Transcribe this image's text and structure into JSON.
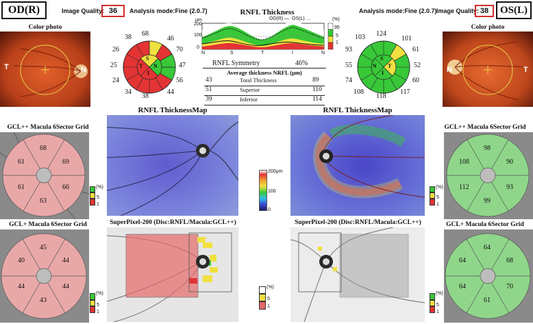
{
  "od": {
    "eye": "OD(R)",
    "quality_label": "Image Quality:",
    "quality_value": "36",
    "mode": "Analysis mode:Fine (2.0.7)",
    "color_photo_title": "Color photo",
    "photo_left": "T",
    "photo_right": "N",
    "clock": {
      "s1": "38",
      "s2": "68",
      "s3": "46",
      "s4": "26",
      "s5": "70",
      "s6": "25",
      "s7": "47",
      "s8": "24",
      "s9": "56",
      "s10": "34",
      "s11": "38",
      "s12": "44"
    },
    "quadrant": {
      "S": "S",
      "T": "T",
      "N": "N",
      "I": "I"
    },
    "gclpp_title": "GCL++ Macula 6Sector Grid",
    "gclpp": {
      "top": "68",
      "upper_left": "61",
      "upper_right": "69",
      "lower_left": "61",
      "lower_right": "66",
      "bottom": "63"
    },
    "gclp_title": "GCL+ Macula 6Sector Grid",
    "gclp": {
      "top": "45",
      "upper_left": "40",
      "upper_right": "44",
      "lower_left": "44",
      "lower_right": "44",
      "bottom": "43"
    }
  },
  "os": {
    "eye": "OS(L)",
    "quality_label": "Image Quality:",
    "quality_value": "38",
    "mode": "Analysis mode:Fine (2.0.7)",
    "color_photo_title": "Color photo",
    "photo_left": "N",
    "photo_right": "T",
    "clock": {
      "s1": "103",
      "s2": "124",
      "s3": "101",
      "s4": "93",
      "s5": "61",
      "s6": "55",
      "s7": "52",
      "s8": "74",
      "s9": "60",
      "s10": "108",
      "s11": "118",
      "s12": "117"
    },
    "quadrant": {
      "S": "S",
      "T": "T",
      "N": "N",
      "I": "I"
    },
    "gclpp_title": "GCL++ Macula 6Sector Grid",
    "gclpp": {
      "top": "98",
      "upper_left": "108",
      "upper_right": "90",
      "lower_left": "112",
      "lower_right": "93",
      "bottom": "99"
    },
    "gclp_title": "GCL+ Macula 6Sector Grid",
    "gclp": {
      "top": "64",
      "upper_left": "64",
      "upper_right": "68",
      "lower_left": "64",
      "lower_right": "70",
      "bottom": "61"
    }
  },
  "rnfl": {
    "title": "RNFL Thickness",
    "unit": "μm",
    "legend_od": "OD(R) —",
    "legend_os": "OS(L) …",
    "y_ticks": [
      "200",
      "100",
      "0"
    ],
    "x_ticks": [
      "N",
      "S",
      "T",
      "I",
      "N"
    ],
    "pct_unit": "(%)",
    "pct_ticks": [
      "95",
      "5",
      "1"
    ],
    "symmetry_label": "RNFL Symmetry",
    "symmetry_value": "46%",
    "avg_title": "Average thickness NRFL (μm)",
    "rows": [
      {
        "od": "43",
        "label": "Total Thickness",
        "os": "89"
      },
      {
        "od": "51",
        "label": "Superior",
        "os": "110"
      },
      {
        "od": "39",
        "label": "Inferior",
        "os": "114"
      }
    ]
  },
  "maps": {
    "thickness_title_od": "RNFL ThicknessMap",
    "thickness_title_os": "RNFL ThicknessMap",
    "scale_ticks": [
      "200μm",
      "100",
      "0"
    ],
    "superpixel_title_od": "SuperPixel-200 (Disc:RNFL/Macula:GCL++)",
    "superpixel_title_os": "SuperPixel-200 (Disc:RNFL/Macula:GCL++)",
    "sp_pct_unit": "(%)",
    "sp_pct_ticks": [
      "5",
      "1"
    ]
  },
  "grid_legend": {
    "unit": "(%)",
    "ticks": [
      "5",
      "1"
    ]
  },
  "colors": {
    "normal": "#38c838",
    "border": "#f0e040",
    "abnormal": "#e43434",
    "high": "#ffffff"
  }
}
